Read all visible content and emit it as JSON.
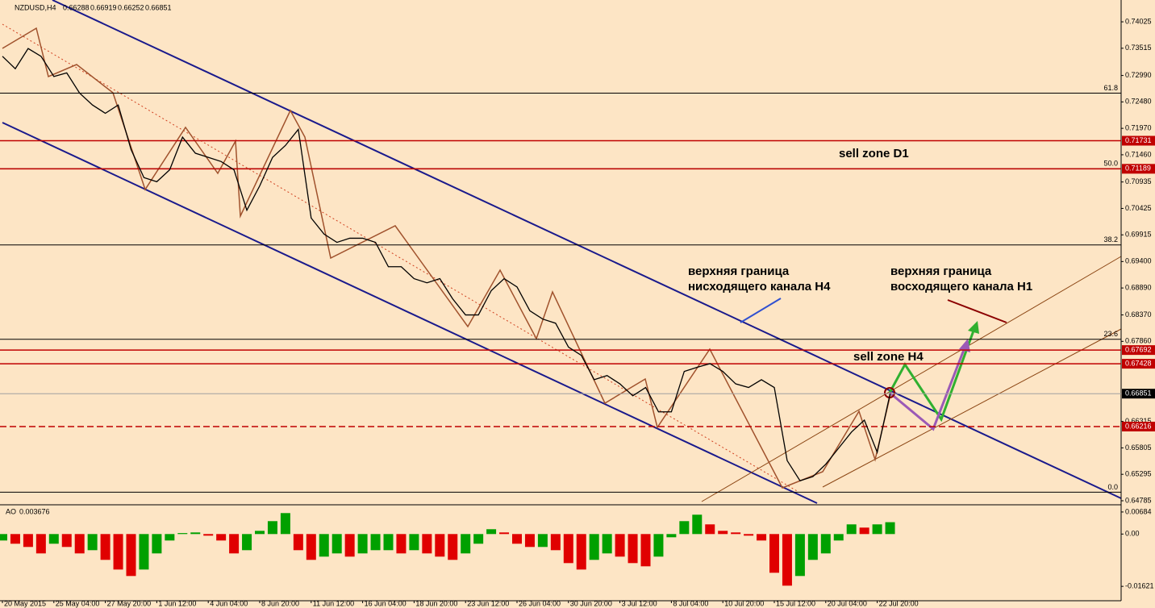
{
  "chart_data": [
    {
      "type": "line",
      "title": "NZDUSD,H4",
      "ohlc": [
        0.66288,
        0.66919,
        0.66252,
        0.66851
      ],
      "categories": [
        "20 May 2015",
        null,
        null,
        null,
        "25 May 04:00",
        null,
        null,
        null,
        "27 May 20:00",
        null,
        null,
        null,
        "1 Jun 12:00",
        null,
        null,
        null,
        "4 Jun 04:00",
        null,
        null,
        null,
        "8 Jun 20:00",
        null,
        null,
        null,
        "11 Jun 12:00",
        null,
        null,
        null,
        "16 Jun 04:00",
        null,
        null,
        null,
        "18 Jun 20:00",
        null,
        null,
        null,
        "23 Jun 12:00",
        null,
        null,
        null,
        "26 Jun 04:00",
        null,
        null,
        null,
        "30 Jun 20:00",
        null,
        null,
        null,
        "3 Jul 12:00",
        null,
        null,
        null,
        "8 Jul 04:00",
        null,
        null,
        null,
        "10 Jul 20:00",
        null,
        null,
        null,
        "15 Jul 12:00",
        null,
        null,
        null,
        "20 Jul 04:00",
        null,
        null,
        null,
        "22 Jul 20:00",
        null
      ],
      "series": [
        {
          "color": "#000000",
          "values": [
            0.7336,
            0.7312,
            0.7351,
            0.7336,
            0.7297,
            0.7304,
            0.7265,
            0.7242,
            0.7226,
            0.7242,
            0.7156,
            0.7102,
            0.7094,
            0.7117,
            0.718,
            0.7149,
            0.7141,
            0.7133,
            0.7117,
            0.7039,
            0.7086,
            0.7141,
            0.7164,
            0.7195,
            0.7024,
            0.6993,
            0.6977,
            0.6985,
            0.6985,
            0.6977,
            0.693,
            0.693,
            0.6907,
            0.6899,
            0.6907,
            0.6868,
            0.6837,
            0.6837,
            0.6884,
            0.6907,
            0.6891,
            0.6845,
            0.6829,
            0.6821,
            0.6775,
            0.6759,
            0.6712,
            0.672,
            0.6704,
            0.6681,
            0.6697,
            0.665,
            0.665,
            0.6728,
            0.6736,
            0.6743,
            0.6728,
            0.6704,
            0.6697,
            0.6712,
            0.6697,
            0.6556,
            0.6517,
            0.6525,
            0.6549,
            0.658,
            0.6611,
            0.6634,
            0.6572,
            0.66851
          ]
        }
      ],
      "ylim": [
        0.64707,
        0.74446
      ],
      "yticks": [
        0.74025,
        0.73515,
        {
          "value": 0.7299,
          "label": "0.72990"
        },
        {
          "value": 0.7248,
          "label": "0.72480"
        },
        {
          "value": 0.7197,
          "label": "0.71970"
        },
        {
          "value": 0.7146,
          "label": "0.71460"
        },
        0.70935,
        0.70425,
        0.69915,
        {
          "value": 0.694,
          "label": "0.69400"
        },
        {
          "value": 0.6889,
          "label": "0.68890"
        },
        {
          "value": 0.6837,
          "label": "0.68370"
        },
        {
          "value": 0.6786,
          "label": "0.67860"
        },
        0.66315,
        0.65805,
        0.65295,
        0.64785
      ],
      "levels": [
        {
          "value": 0.71731,
          "color": "#c00000",
          "style": "solid"
        },
        {
          "value": 0.71189,
          "color": "#c00000",
          "style": "solid"
        },
        {
          "value": 0.67692,
          "color": "#c00000",
          "style": "solid"
        },
        {
          "value": 0.67428,
          "color": "#c00000",
          "style": "solid"
        },
        {
          "value": 0.66851,
          "color": "#000000",
          "style": "current"
        },
        {
          "value": 0.66216,
          "color": "#c00000",
          "style": "dashed"
        }
      ],
      "fib_levels": [
        {
          "value": 0.7265,
          "label": "61.8"
        },
        {
          "value": 0.7119,
          "label": "50.0"
        },
        {
          "value": 0.6972,
          "label": "38.2"
        },
        {
          "value": 0.679,
          "label": "23.6"
        },
        {
          "value": 0.6495,
          "label": "0.0"
        }
      ],
      "annotations": [
        "sell zone D1",
        "sell zone H4",
        "верхняя граница",
        "нисходящего канала H4",
        "верхняя граница",
        "восходящего канала H1"
      ]
    },
    {
      "type": "bar",
      "title": "AO",
      "values": [
        -0.002,
        -0.003,
        -0.004,
        -0.006,
        -0.003,
        -0.004,
        -0.006,
        -0.005,
        -0.008,
        -0.011,
        -0.013,
        -0.011,
        -0.006,
        -0.002,
        0.0003,
        0.0005,
        -0.0005,
        -0.002,
        -0.006,
        -0.005,
        0.001,
        0.004,
        0.0065,
        -0.005,
        -0.008,
        -0.007,
        -0.006,
        -0.007,
        -0.006,
        -0.005,
        -0.005,
        -0.006,
        -0.005,
        -0.006,
        -0.007,
        -0.008,
        -0.006,
        -0.003,
        0.0015,
        0.0005,
        -0.003,
        -0.004,
        -0.004,
        -0.005,
        -0.009,
        -0.011,
        -0.008,
        -0.006,
        -0.007,
        -0.009,
        -0.01,
        -0.007,
        -0.001,
        0.004,
        0.006,
        0.003,
        0.001,
        0.0005,
        -0.0005,
        -0.002,
        -0.012,
        -0.016,
        -0.013,
        -0.008,
        -0.006,
        -0.002,
        0.003,
        0.002,
        0.003,
        0.003676
      ],
      "ylim": [
        -0.02067,
        0.00857
      ],
      "yticks": [
        0.00684,
        {
          "value": 0,
          "label": "0.00"
        },
        -0.01621
      ],
      "up_color": "#00a000",
      "down_color": "#e00000"
    }
  ]
}
